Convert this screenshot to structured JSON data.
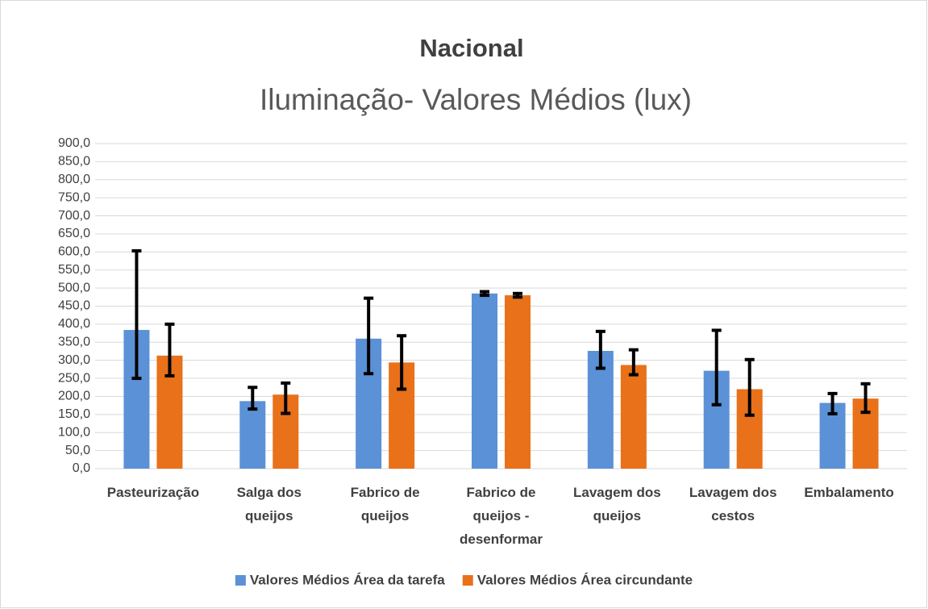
{
  "chart_data": {
    "type": "bar",
    "title": "Nacional",
    "subtitle": "Iluminação- Valores Médios (lux)",
    "categories": [
      "Pasteurização",
      "Salga dos queijos",
      "Fabrico de queijos",
      "Fabrico de queijos - desenformar",
      "Lavagem dos queijos",
      "Lavagem dos cestos",
      "Embalamento"
    ],
    "series": [
      {
        "name": "Valores Médios Área da tarefa",
        "color": "#5b91d6",
        "values": [
          384,
          187,
          360,
          485,
          326,
          271,
          182
        ],
        "error_plus": [
          219,
          38,
          112,
          5,
          54,
          112,
          26
        ],
        "error_minus": [
          134,
          22,
          97,
          5,
          48,
          94,
          30
        ]
      },
      {
        "name": "Valores Médios Área circundante",
        "color": "#e8711a",
        "values": [
          313,
          205,
          294,
          480,
          287,
          220,
          194
        ],
        "error_plus": [
          87,
          32,
          74,
          5,
          42,
          82,
          41
        ],
        "error_minus": [
          56,
          52,
          74,
          5,
          27,
          72,
          38
        ]
      }
    ],
    "ylim": [
      0,
      900
    ],
    "yticks": [
      {
        "value": 0,
        "label": "0,0"
      },
      {
        "value": 50,
        "label": "50,0"
      },
      {
        "value": 100,
        "label": "100,0"
      },
      {
        "value": 150,
        "label": "150,0"
      },
      {
        "value": 200,
        "label": "200,0"
      },
      {
        "value": 250,
        "label": "250,0"
      },
      {
        "value": 300,
        "label": "300,0"
      },
      {
        "value": 350,
        "label": "350,0"
      },
      {
        "value": 400,
        "label": "400,0"
      },
      {
        "value": 450,
        "label": "450,0"
      },
      {
        "value": 500,
        "label": "500,0"
      },
      {
        "value": 550,
        "label": "550,0"
      },
      {
        "value": 600,
        "label": "600,0"
      },
      {
        "value": 650,
        "label": "650,0"
      },
      {
        "value": 700,
        "label": "700,0"
      },
      {
        "value": 750,
        "label": "750,0"
      },
      {
        "value": 800,
        "label": "800,0"
      },
      {
        "value": 850,
        "label": "850,0"
      },
      {
        "value": 900,
        "label": "900,0"
      }
    ],
    "grid": true,
    "legend": "bottom"
  }
}
